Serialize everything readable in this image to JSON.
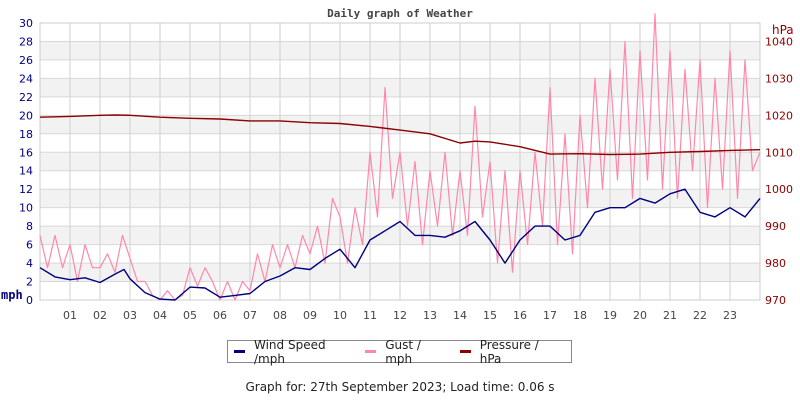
{
  "chart_data": {
    "type": "line",
    "title": "Daily graph of Weather",
    "xlabel": "",
    "ylabel_left": "mph",
    "ylabel_right": "hPa",
    "x_ticks": [
      "01",
      "02",
      "03",
      "04",
      "05",
      "06",
      "07",
      "08",
      "09",
      "10",
      "11",
      "12",
      "13",
      "14",
      "15",
      "16",
      "17",
      "18",
      "19",
      "20",
      "21",
      "22",
      "23"
    ],
    "xlim_hours": [
      0,
      24
    ],
    "ylim_left": [
      0,
      30
    ],
    "y_ticks_left": [
      "0",
      "2",
      "4",
      "6",
      "8",
      "10",
      "12",
      "14",
      "16",
      "18",
      "20",
      "22",
      "24",
      "26",
      "28",
      "30"
    ],
    "ylim_right": [
      970,
      1045
    ],
    "y_ticks_right": [
      "970",
      "980",
      "990",
      "1000",
      "1010",
      "1020",
      "1030",
      "1040"
    ],
    "grid": true,
    "legend_position": "bottom",
    "series": [
      {
        "name": "Wind Speed /mph",
        "axis": "left",
        "color": "#000080",
        "x": [
          0,
          0.5,
          1,
          1.5,
          2,
          2.5,
          2.8,
          3,
          3.5,
          4,
          4.5,
          5,
          5.5,
          6,
          6.5,
          7,
          7.5,
          8,
          8.5,
          9,
          9.5,
          10,
          10.5,
          11,
          11.5,
          12,
          12.5,
          13,
          13.5,
          14,
          14.5,
          15,
          15.5,
          16,
          16.5,
          17,
          17.5,
          18,
          18.5,
          19,
          19.5,
          20,
          20.5,
          21,
          21.5,
          22,
          22.5,
          23,
          23.5,
          24
        ],
        "values": [
          3.5,
          2.5,
          2.2,
          2.4,
          1.9,
          2.8,
          3.3,
          2.3,
          0.8,
          0.1,
          0,
          1.4,
          1.3,
          0.3,
          0.5,
          0.7,
          2,
          2.6,
          3.5,
          3.3,
          4.5,
          5.5,
          3.5,
          6.5,
          7.5,
          8.5,
          7,
          7,
          6.8,
          7.5,
          8.5,
          6.5,
          4,
          6.5,
          8,
          8,
          6.5,
          7,
          9.5,
          10,
          10,
          11,
          10.5,
          11.5,
          12,
          9.5,
          9,
          10,
          9,
          11
        ]
      },
      {
        "name": "Gust / mph",
        "axis": "left",
        "color": "#ff88aa",
        "x_step_hours": 0.25,
        "values": [
          7,
          3.5,
          7,
          3.5,
          6,
          2,
          6,
          3.5,
          3.5,
          5,
          3,
          7,
          4.5,
          2,
          2,
          0.5,
          0,
          1,
          0,
          0.5,
          3.5,
          1.5,
          3.5,
          2,
          0,
          2,
          0,
          2,
          1,
          5,
          2,
          6,
          3.5,
          6,
          3.5,
          7,
          5,
          8,
          4,
          11,
          9,
          4,
          10,
          6,
          16,
          9,
          23,
          11,
          16,
          8,
          15,
          6,
          14,
          8,
          16,
          7,
          14,
          7,
          21,
          9,
          15,
          4,
          14,
          3,
          14,
          6,
          16,
          8,
          23,
          6,
          18,
          5,
          20,
          10,
          24,
          12,
          25,
          13,
          28,
          11,
          27,
          13,
          31,
          12,
          27,
          11,
          25,
          14,
          26,
          10,
          24,
          12,
          27,
          11,
          26,
          14,
          16
        ]
      },
      {
        "name": "Pressure / hPa",
        "axis": "right",
        "color": "#8b0000",
        "x": [
          0,
          1,
          2,
          2.5,
          3,
          4,
          5,
          6,
          7,
          8,
          9,
          10,
          11,
          12,
          13,
          14,
          14.5,
          15,
          16,
          17,
          18,
          19,
          20,
          21,
          22,
          23,
          24
        ],
        "values": [
          1019.5,
          1019.7,
          1020,
          1020.1,
          1020,
          1019.5,
          1019.2,
          1019,
          1018.5,
          1018.5,
          1018,
          1017.8,
          1017,
          1016,
          1015,
          1012.5,
          1013,
          1012.8,
          1011.5,
          1009.5,
          1009.6,
          1009.4,
          1009.5,
          1010,
          1010.2,
          1010.5,
          1010.7
        ]
      }
    ]
  },
  "footer": "Graph for: 27th September 2023; Load time: 0.06 s"
}
